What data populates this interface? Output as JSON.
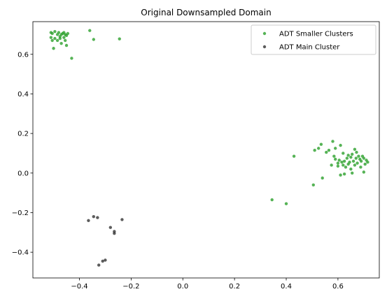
{
  "chart_data": {
    "type": "scatter",
    "title": "Original Downsampled Domain",
    "xlabel": "",
    "ylabel": "",
    "xlim": [
      -0.58,
      0.76
    ],
    "ylim": [
      -0.53,
      0.765
    ],
    "xticks": [
      -0.4,
      -0.2,
      0.0,
      0.2,
      0.4,
      0.6
    ],
    "xtick_labels": [
      "−0.4",
      "−0.2",
      "0.0",
      "0.2",
      "0.4",
      "0.6"
    ],
    "yticks": [
      -0.4,
      -0.2,
      0.0,
      0.2,
      0.4,
      0.6
    ],
    "ytick_labels": [
      "−0.4",
      "−0.2",
      "0.0",
      "0.2",
      "0.4",
      "0.6"
    ],
    "grid": false,
    "legend_position": "top-right",
    "series": [
      {
        "name": "ADT Smaller Clusters",
        "color": "#2ca02c",
        "points": [
          [
            -0.51,
            0.71
          ],
          [
            -0.505,
            0.705
          ],
          [
            -0.495,
            0.715
          ],
          [
            -0.485,
            0.7
          ],
          [
            -0.48,
            0.71
          ],
          [
            -0.475,
            0.69
          ],
          [
            -0.47,
            0.7
          ],
          [
            -0.465,
            0.705
          ],
          [
            -0.46,
            0.71
          ],
          [
            -0.455,
            0.7
          ],
          [
            -0.45,
            0.695
          ],
          [
            -0.445,
            0.705
          ],
          [
            -0.51,
            0.685
          ],
          [
            -0.505,
            0.67
          ],
          [
            -0.495,
            0.68
          ],
          [
            -0.485,
            0.67
          ],
          [
            -0.475,
            0.68
          ],
          [
            -0.46,
            0.685
          ],
          [
            -0.455,
            0.67
          ],
          [
            -0.47,
            0.655
          ],
          [
            -0.45,
            0.645
          ],
          [
            -0.5,
            0.63
          ],
          [
            -0.43,
            0.58
          ],
          [
            -0.36,
            0.72
          ],
          [
            -0.345,
            0.675
          ],
          [
            -0.245,
            0.678
          ],
          [
            0.345,
            -0.135
          ],
          [
            0.4,
            -0.155
          ],
          [
            0.43,
            0.085
          ],
          [
            0.505,
            -0.06
          ],
          [
            0.51,
            0.115
          ],
          [
            0.525,
            0.125
          ],
          [
            0.535,
            0.145
          ],
          [
            0.54,
            -0.025
          ],
          [
            0.555,
            0.105
          ],
          [
            0.565,
            0.115
          ],
          [
            0.575,
            0.04
          ],
          [
            0.58,
            0.16
          ],
          [
            0.585,
            0.085
          ],
          [
            0.59,
            0.07
          ],
          [
            0.59,
            0.125
          ],
          [
            0.6,
            0.05
          ],
          [
            0.605,
            0.065
          ],
          [
            0.61,
            0.14
          ],
          [
            0.61,
            -0.01
          ],
          [
            0.615,
            0.055
          ],
          [
            0.62,
            0.1
          ],
          [
            0.62,
            0.04
          ],
          [
            0.625,
            0.06
          ],
          [
            0.63,
            0.03
          ],
          [
            0.635,
            0.075
          ],
          [
            0.64,
            0.09
          ],
          [
            0.64,
            0.045
          ],
          [
            0.645,
            0.055
          ],
          [
            0.65,
            0.02
          ],
          [
            0.65,
            0.08
          ],
          [
            0.655,
            0.095
          ],
          [
            0.66,
            0.06
          ],
          [
            0.665,
            0.12
          ],
          [
            0.665,
            0.04
          ],
          [
            0.67,
            0.075
          ],
          [
            0.672,
            0.105
          ],
          [
            0.675,
            0.05
          ],
          [
            0.68,
            0.085
          ],
          [
            0.685,
            0.07
          ],
          [
            0.688,
            0.03
          ],
          [
            0.69,
            0.06
          ],
          [
            0.695,
            0.085
          ],
          [
            0.7,
            0.075
          ],
          [
            0.705,
            0.045
          ],
          [
            0.71,
            0.065
          ],
          [
            0.715,
            0.055
          ],
          [
            0.655,
            0.0
          ],
          [
            0.7,
            0.005
          ],
          [
            0.625,
            -0.005
          ],
          [
            0.6,
            0.035
          ]
        ]
      },
      {
        "name": "ADT Main Cluster",
        "color": "#333333",
        "points": [
          [
            -0.365,
            -0.24
          ],
          [
            -0.345,
            -0.22
          ],
          [
            -0.33,
            -0.225
          ],
          [
            -0.28,
            -0.275
          ],
          [
            -0.265,
            -0.295
          ],
          [
            -0.265,
            -0.305
          ],
          [
            -0.235,
            -0.235
          ],
          [
            -0.3,
            -0.44
          ],
          [
            -0.31,
            -0.445
          ],
          [
            -0.325,
            -0.465
          ]
        ]
      }
    ]
  }
}
